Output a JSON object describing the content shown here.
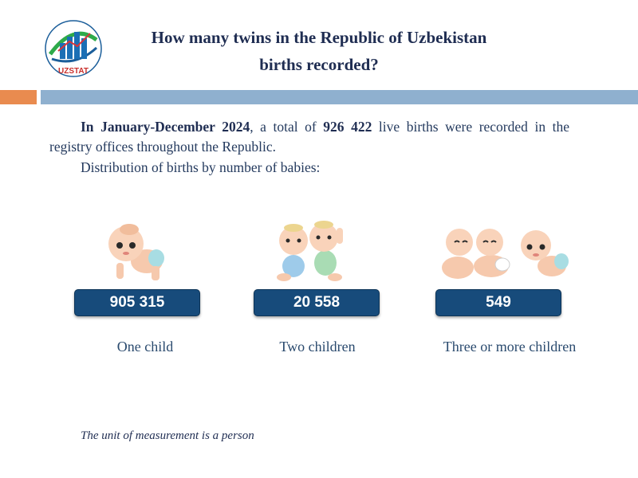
{
  "header": {
    "logo_text": "UZSTAT",
    "title_line1": "How many twins in the Republic of Uzbekistan",
    "title_line2": "births recorded?"
  },
  "intro": {
    "period": "In January-December 2024",
    "text1": ", a total of ",
    "total": "926 422",
    "text2": " live births were recorded in the registry offices throughout the Republic."
  },
  "distribution_label": "Distribution of births by number of babies:",
  "categories": [
    {
      "value": "905 315",
      "label": "One child"
    },
    {
      "value": "20 558",
      "label": "Two children"
    },
    {
      "value": "549",
      "label": "Three or more children"
    }
  ],
  "unit_note": "The unit of measurement is a person",
  "colors": {
    "title": "#1f2d52",
    "badge": "#174b7b",
    "accent_orange": "#e98b4f",
    "accent_blue": "#8fb0cf"
  }
}
